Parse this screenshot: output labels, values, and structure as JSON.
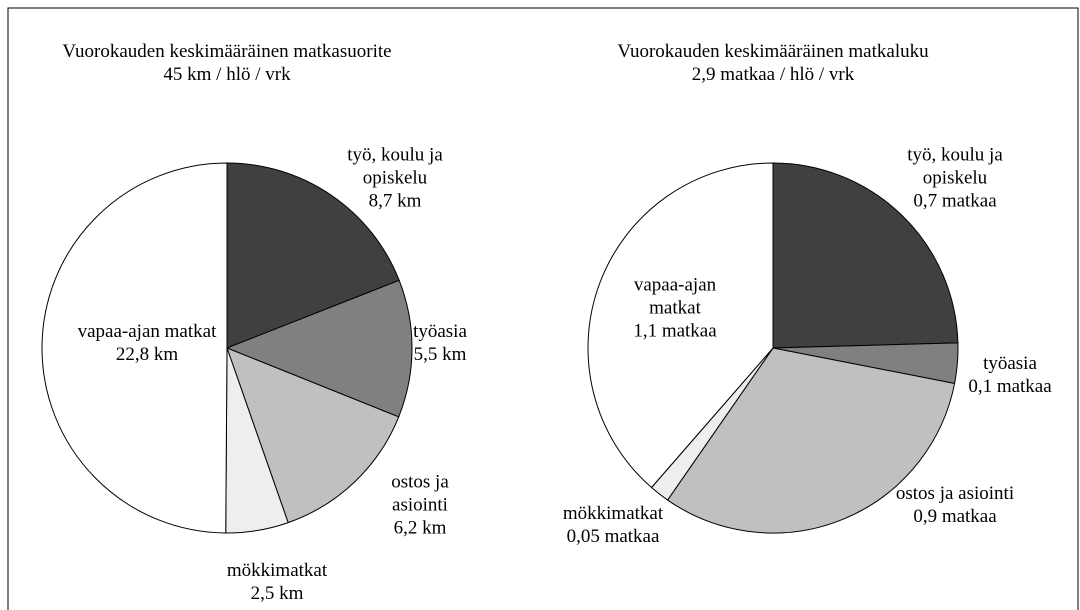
{
  "chart_data": [
    {
      "type": "pie",
      "title": "Vuorokauden keskimääräinen matkasuorite",
      "subtitle": "45 km / hlö / vrk",
      "categories": [
        "työ, koulu ja opiskelu",
        "työasia",
        "ostos ja asiointi",
        "mökkimatkat",
        "vapaa-ajan matkat"
      ],
      "values": [
        8.7,
        5.5,
        6.2,
        2.5,
        22.8
      ],
      "value_labels": [
        "8,7 km",
        "5,5 km",
        "6,2 km",
        "2,5 km",
        "22,8 km"
      ],
      "colors": [
        "#404040",
        "#808080",
        "#c0c0c0",
        "#eeeeee",
        "#ffffff"
      ]
    },
    {
      "type": "pie",
      "title": "Vuorokauden keskimääräinen matkaluku",
      "subtitle": "2,9 matkaa / hlö / vrk",
      "categories": [
        "työ, koulu ja opiskelu",
        "työasia",
        "ostos ja asiointi",
        "mökkimatkat",
        "vapaa-ajan matkat"
      ],
      "values": [
        0.7,
        0.1,
        0.9,
        0.05,
        1.1
      ],
      "value_labels": [
        "0,7 matkaa",
        "0,1 matkaa",
        "0,9 matkaa",
        "0,05 matkaa",
        "1,1 matkaa"
      ],
      "colors": [
        "#404040",
        "#808080",
        "#c0c0c0",
        "#eeeeee",
        "#ffffff"
      ]
    }
  ]
}
